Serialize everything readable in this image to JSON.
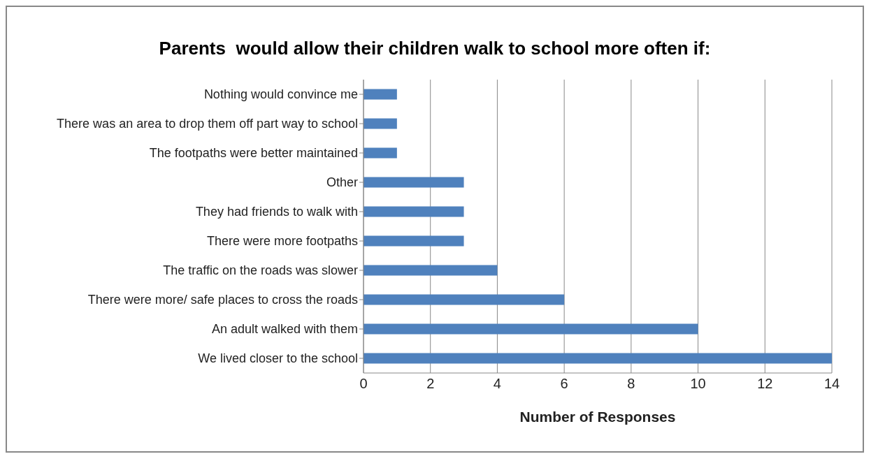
{
  "chart_data": {
    "type": "bar",
    "orientation": "horizontal",
    "title": "Parents  would allow their children walk to school more often if:",
    "xlabel": "Number of Responses",
    "categories": [
      "Nothing would convince me",
      "There was an area to drop them off part way to school",
      "The footpaths were better maintained",
      "Other",
      "They had friends to walk with",
      "There were more footpaths",
      "The traffic on the roads was slower",
      "There were more/ safe places to cross the roads",
      "An adult walked with them",
      "We lived closer to the school"
    ],
    "values": [
      1,
      1,
      1,
      3,
      3,
      3,
      4,
      6,
      10,
      14
    ],
    "color": "#4f81bd",
    "xlim": [
      0,
      14
    ],
    "xticks": [
      0,
      2,
      4,
      6,
      8,
      10,
      12,
      14
    ],
    "grid": "x"
  }
}
